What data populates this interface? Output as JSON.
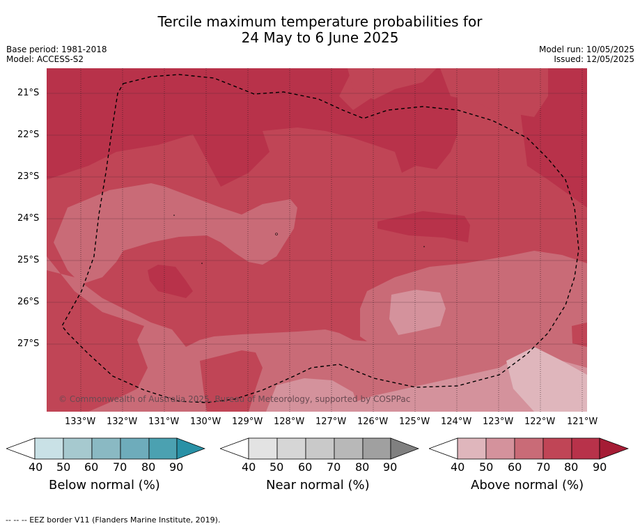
{
  "title": {
    "line1": "Tercile maximum temperature probabilities for",
    "line2": "24 May to 6 June 2025"
  },
  "meta": {
    "base_period": "Base period: 1981-2018",
    "model": "Model: ACCESS-S2",
    "model_run": "Model run: 10/05/2025",
    "issued": "Issued: 12/05/2025"
  },
  "map": {
    "lat_labels": [
      "21°S",
      "22°S",
      "23°S",
      "24°S",
      "25°S",
      "26°S",
      "27°S"
    ],
    "lon_labels": [
      "133°W",
      "132°W",
      "131°W",
      "130°W",
      "129°W",
      "128°W",
      "127°W",
      "126°W",
      "125°W",
      "124°W",
      "123°W",
      "122°W",
      "121°W"
    ],
    "copyright": "© Commonwealth of Australia 2025, Bureau of Meteorology, supported by COSPPac",
    "colors": {
      "above_40": "#dfb6bc",
      "above_50": "#d4929c",
      "above_60": "#c96b77",
      "above_70": "#c04556",
      "above_80": "#b8324a",
      "above_90": "#a51c35"
    }
  },
  "colorbars": [
    {
      "label": "Below normal (%)",
      "ticks": [
        "40",
        "50",
        "60",
        "70",
        "80",
        "90"
      ],
      "colors": [
        "#c9e1e6",
        "#a6c9cf",
        "#8ab9c3",
        "#6eacbb",
        "#4ba1b1",
        "#2991a6"
      ]
    },
    {
      "label": "Near normal (%)",
      "ticks": [
        "40",
        "50",
        "60",
        "70",
        "80",
        "90"
      ],
      "colors": [
        "#e3e3e3",
        "#d6d6d6",
        "#c9c9c9",
        "#b8b8b8",
        "#a0a0a0",
        "#808080"
      ]
    },
    {
      "label": "Above normal (%)",
      "ticks": [
        "40",
        "50",
        "60",
        "70",
        "80",
        "90"
      ],
      "colors": [
        "#dfb6bc",
        "#d4929c",
        "#c96b77",
        "#c04556",
        "#b8324a",
        "#a51c35"
      ]
    }
  ],
  "footer": "-- -- -- EEZ border V11 (Flanders Marine Institute, 2019)."
}
